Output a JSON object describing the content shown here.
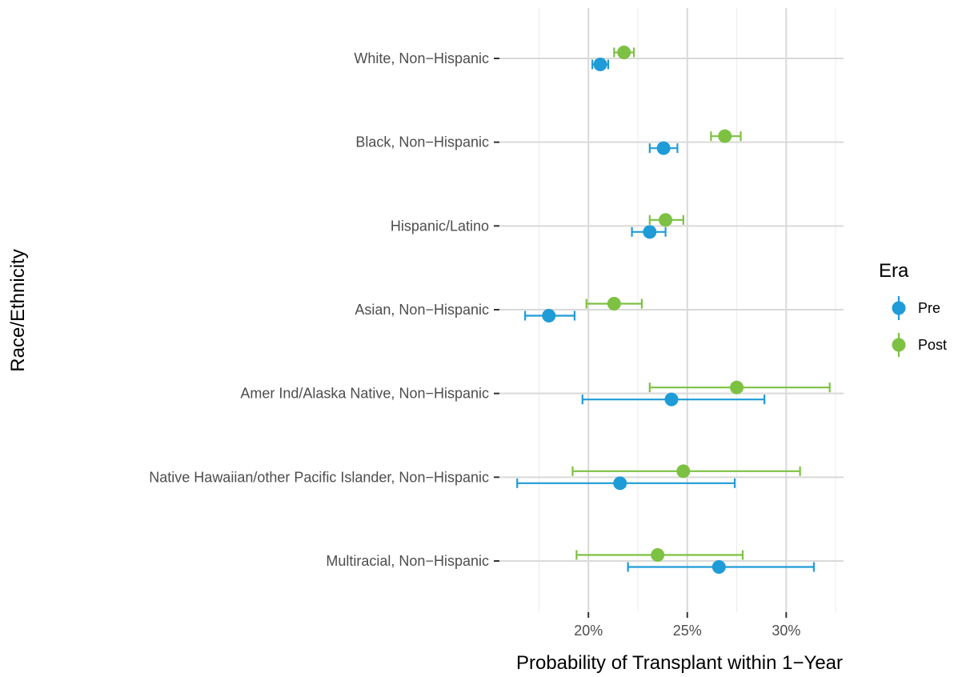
{
  "chart_data": {
    "type": "scatter",
    "subtype": "dot-whisker",
    "xlabel": "Probability of Transplant within 1−Year",
    "ylabel": "Race/Ethnicity",
    "xlim": [
      0.155,
      0.329
    ],
    "x_ticks": [
      0.2,
      0.25,
      0.3
    ],
    "x_tick_labels": [
      "20%",
      "25%",
      "30%"
    ],
    "grid": true,
    "legend": {
      "title": "Era",
      "position": "right"
    },
    "categories": [
      "White, Non−Hispanic",
      "Black, Non−Hispanic",
      "Hispanic/Latino",
      "Asian, Non−Hispanic",
      "Amer Ind/Alaska Native, Non−Hispanic",
      "Native Hawaiian/other Pacific Islander, Non−Hispanic",
      "Multiracial, Non−Hispanic"
    ],
    "series": [
      {
        "name": "Pre",
        "color": "#1f9bd7",
        "values": [
          0.206,
          0.238,
          0.231,
          0.18,
          0.242,
          0.216,
          0.266
        ],
        "lower": [
          0.202,
          0.231,
          0.222,
          0.168,
          0.197,
          0.164,
          0.22
        ],
        "upper": [
          0.21,
          0.245,
          0.239,
          0.193,
          0.289,
          0.274,
          0.314
        ]
      },
      {
        "name": "Post",
        "color": "#7dc142",
        "values": [
          0.218,
          0.269,
          0.239,
          0.213,
          0.275,
          0.248,
          0.235
        ],
        "lower": [
          0.213,
          0.262,
          0.231,
          0.199,
          0.231,
          0.192,
          0.194
        ],
        "upper": [
          0.223,
          0.277,
          0.248,
          0.227,
          0.322,
          0.307,
          0.278
        ]
      }
    ]
  }
}
